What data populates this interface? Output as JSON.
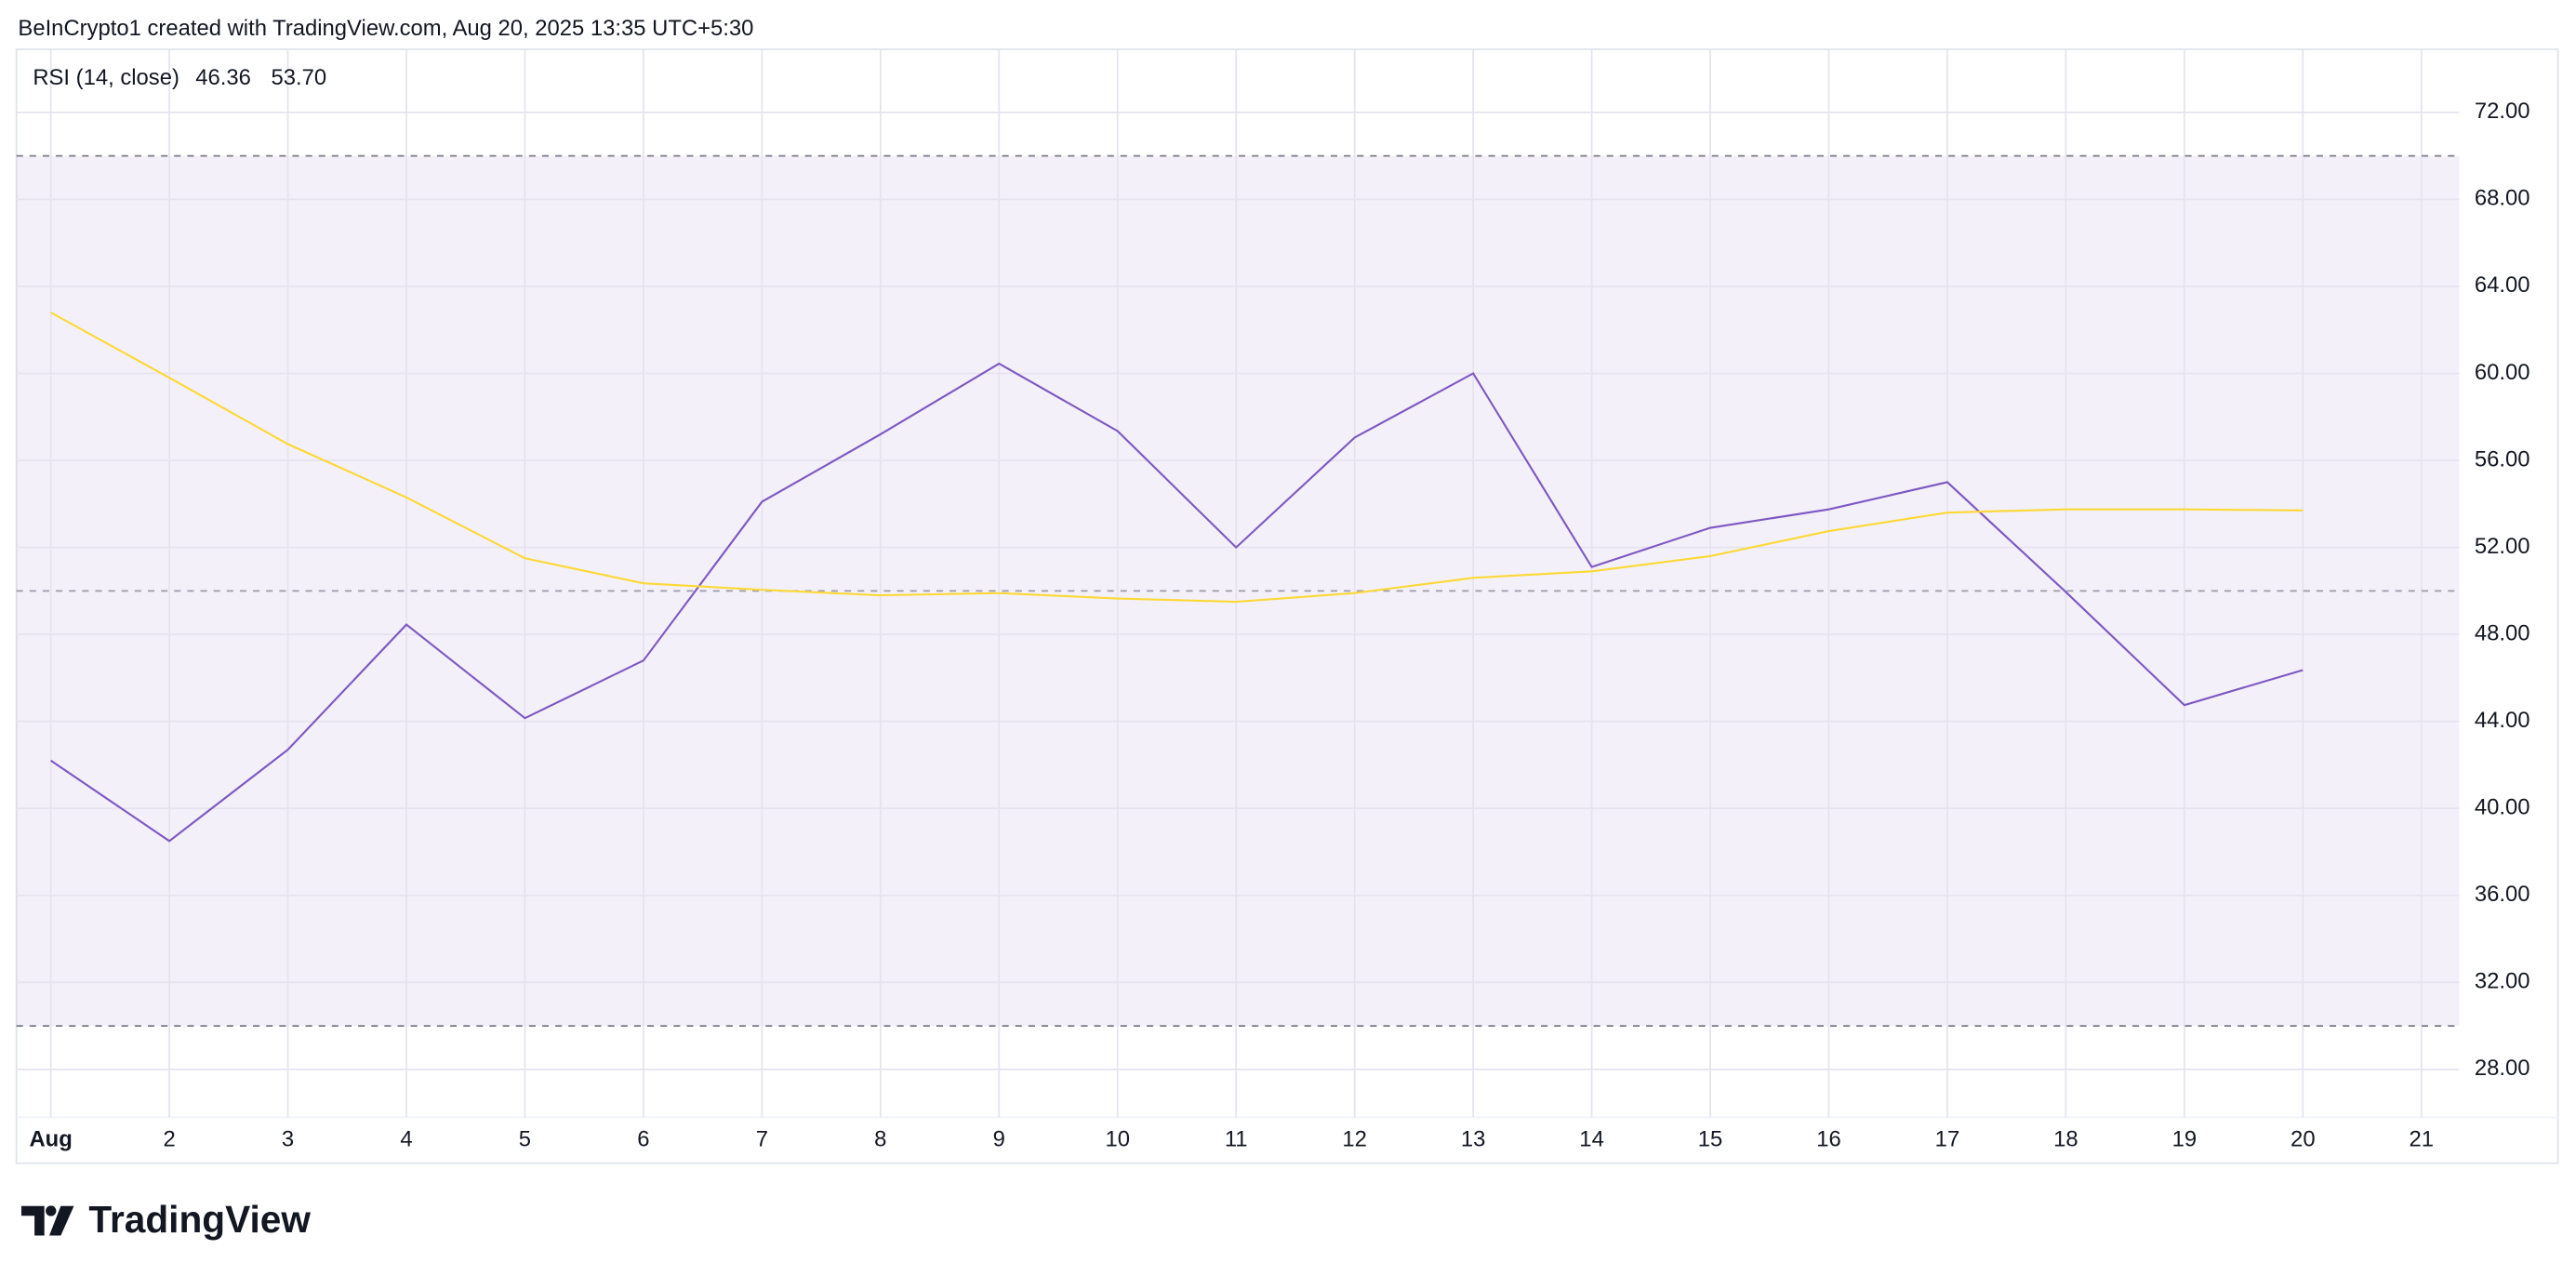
{
  "header": {
    "attribution": "BeInCrypto1 created with TradingView.com, Aug 20, 2025 13:35 UTC+5:30",
    "brand": "TradingView"
  },
  "chart_data": {
    "type": "line",
    "legend": {
      "title": "RSI (14, close)",
      "values": [
        "46.36",
        "53.70"
      ]
    },
    "x": [
      1,
      2,
      3,
      4,
      5,
      6,
      7,
      8,
      9,
      10,
      11,
      12,
      13,
      14,
      15,
      16,
      17,
      18,
      19,
      20
    ],
    "series": [
      {
        "color": "#7e57c2",
        "values": [
          42.2,
          38.5,
          42.7,
          48.45,
          44.15,
          46.8,
          54.1,
          57.2,
          60.45,
          57.35,
          52.0,
          57.05,
          60.0,
          51.1,
          52.9,
          53.75,
          55.0,
          49.95,
          44.75,
          46.36
        ]
      },
      {
        "color": "#fdd835",
        "values": [
          62.8,
          59.8,
          56.75,
          54.3,
          51.5,
          50.35,
          50.05,
          49.8,
          49.9,
          49.65,
          49.5,
          49.9,
          50.6,
          50.9,
          51.6,
          52.75,
          53.6,
          53.75,
          53.75,
          53.7
        ]
      }
    ],
    "xlim": [
      0.71,
      21.32
    ],
    "xticks": [
      {
        "value": 1,
        "label": "Aug"
      },
      2,
      3,
      4,
      5,
      6,
      7,
      8,
      9,
      10,
      11,
      12,
      13,
      14,
      15,
      16,
      17,
      18,
      19,
      20,
      21
    ],
    "ylim": [
      25.8,
      74.9
    ],
    "yticks": [
      {
        "value": 28,
        "label": "28.00"
      },
      {
        "value": 32,
        "label": "32.00"
      },
      {
        "value": 36,
        "label": "36.00"
      },
      {
        "value": 40,
        "label": "40.00"
      },
      {
        "value": 44,
        "label": "44.00"
      },
      {
        "value": 48,
        "label": "48.00"
      },
      {
        "value": 52,
        "label": "52.00"
      },
      {
        "value": 56,
        "label": "56.00"
      },
      {
        "value": 60,
        "label": "60.00"
      },
      {
        "value": 64,
        "label": "64.00"
      },
      {
        "value": 68,
        "label": "68.00"
      },
      {
        "value": 72,
        "label": "72.00"
      }
    ],
    "grid": true,
    "bands": {
      "upper": 70,
      "middle": 50,
      "lower": 30,
      "fill": "#7e57c2"
    }
  }
}
